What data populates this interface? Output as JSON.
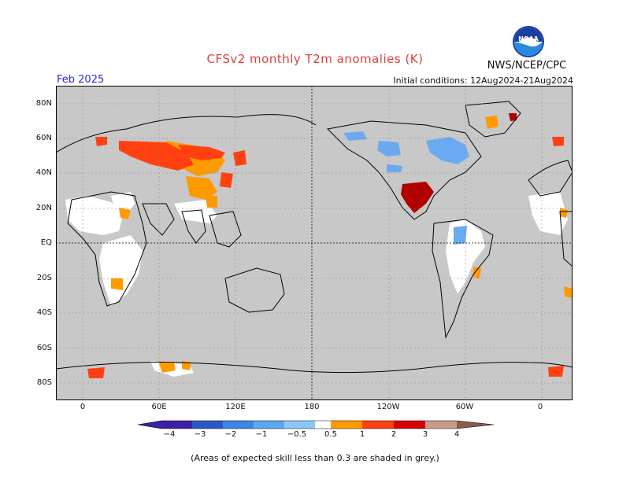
{
  "header": {
    "title": "CFSv2 monthly T2m anomalies (K)",
    "agency": "NWS/NCEP/CPC",
    "logo_text": "NOAA",
    "valid_month": "Feb 2025",
    "initial_conditions": "Initial conditions: 12Aug2024-21Aug2024"
  },
  "map": {
    "land_color": "#c8c8c8",
    "ocean_color": "#ffffff",
    "lat_labels": [
      "80N",
      "60N",
      "40N",
      "20N",
      "EQ",
      "20S",
      "40S",
      "60S",
      "80S"
    ],
    "lon_labels": [
      "0",
      "60E",
      "120E",
      "180",
      "120W",
      "60W",
      "0"
    ]
  },
  "colorbar": {
    "labels": [
      "−4",
      "−3",
      "−2",
      "−1",
      "−0.5",
      "0.5",
      "1",
      "2",
      "3",
      "4"
    ],
    "colors": [
      "#3a1fa8",
      "#2a56c8",
      "#3a86e6",
      "#5aa8f0",
      "#8cc6fa",
      "#ffffff",
      "#ff9a00",
      "#ff4010",
      "#d80000",
      "#a00000",
      "#c89a8a",
      "#8a5a4a"
    ]
  },
  "footnote": "(Areas of expected skill less than 0.3 are shaded in grey.)"
}
